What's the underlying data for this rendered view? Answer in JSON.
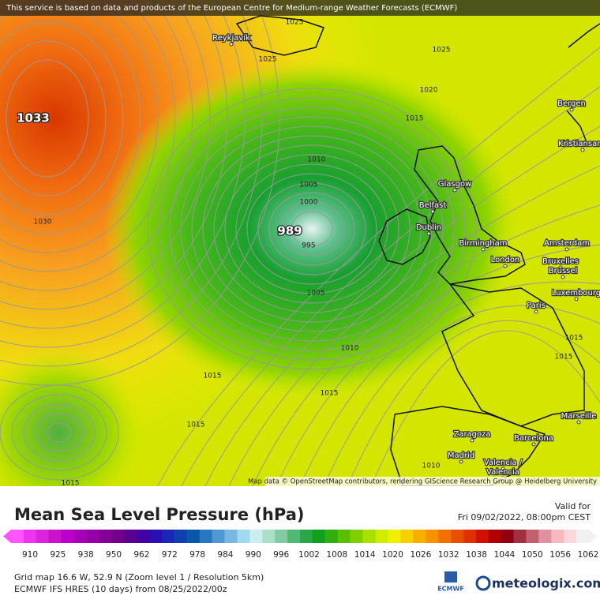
{
  "header": {
    "notice": "This service is based on data and products of the European Centre for Medium-range Weather Forecasts (ECMWF)"
  },
  "map": {
    "attribution": "Map data © OpenStreetMap contributors, rendering GIScience Research Group @ Heidelberg University",
    "cities": [
      "Reykjavík",
      "Bergen",
      "Kristiansand",
      "Glasgow",
      "Belfast",
      "Dublin",
      "Birmingham",
      "London",
      "Amsterdam",
      "Bruxelles",
      "Brussel",
      "Luxembourg",
      "Paris",
      "Zaragoza",
      "Barcelona",
      "Madrid",
      "Valencia /",
      "Valencia",
      "Marseille"
    ],
    "isobar_labels": [
      "1025",
      "1025",
      "1025",
      "1020",
      "1015",
      "1030",
      "1010",
      "1005",
      "1000",
      "995",
      "1005",
      "1010",
      "1015",
      "1015",
      "1015",
      "1015",
      "1015",
      "1010",
      "1015"
    ],
    "centers": [
      "1033",
      "989"
    ]
  },
  "legend": {
    "title": "Mean Sea Level Pressure (hPa)",
    "valid_label": "Valid for",
    "valid_time": "Fri 09/02/2022, 08:00pm CEST",
    "ticks": [
      910,
      925,
      938,
      950,
      962,
      972,
      978,
      984,
      990,
      996,
      1002,
      1008,
      1014,
      1020,
      1026,
      1032,
      1038,
      1044,
      1050,
      1056,
      1062
    ],
    "colors": [
      "#ff55ff",
      "#ee33ee",
      "#dd22dd",
      "#cc11cc",
      "#bb00cc",
      "#a800b8",
      "#9600a8",
      "#840098",
      "#720088",
      "#5a0090",
      "#4400a0",
      "#2a10b0",
      "#1a28b8",
      "#1040b0",
      "#0858a8",
      "#2878c0",
      "#5098d0",
      "#78b8e0",
      "#a0d8ee",
      "#c8eef0",
      "#a8e0c8",
      "#80cca0",
      "#50b870",
      "#28a848",
      "#10a020",
      "#30b010",
      "#58c000",
      "#80d000",
      "#a8e000",
      "#d0ec00",
      "#f0f000",
      "#f8d000",
      "#f8b000",
      "#f89000",
      "#f07000",
      "#e85000",
      "#e03000",
      "#d01000",
      "#b00000",
      "#900010",
      "#a03040",
      "#c06070",
      "#e090a0",
      "#f8b8c0",
      "#fcd8dc",
      "#f0f0f0"
    ]
  },
  "footer": {
    "grid": "Grid map 16.6 W, 52.9 N (Zoom level 1 / Resolution 5km)",
    "model": "ECMWF IFS HRES (10 days) from 08/25/2022/00z",
    "ecmwf": "ECMWF",
    "brand": "meteologix.com"
  }
}
